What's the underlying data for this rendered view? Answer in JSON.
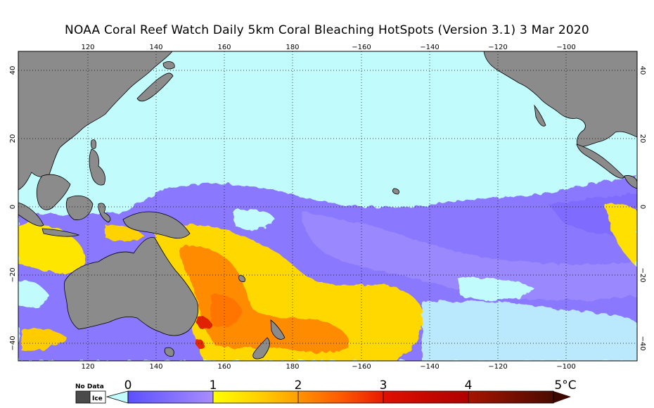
{
  "title": "NOAA Coral Reef Watch Daily 5km Coral Bleaching HotSpots (Version 3.1)  3 Mar 2020",
  "axes": {
    "lon_labels": [
      "120",
      "140",
      "160",
      "180",
      "−160",
      "−140",
      "−120",
      "−100"
    ],
    "lat_labels_left": [
      "40",
      "20",
      "0",
      "−20",
      "−40"
    ],
    "lat_labels_right": [
      "40",
      "20",
      "0",
      "−20",
      "−40"
    ]
  },
  "legend": {
    "nodata_label": "No Data",
    "ice_label": "Ice",
    "ticks": [
      "0",
      "1",
      "2",
      "3",
      "4",
      "5°C"
    ],
    "colors": {
      "ocean_no_stress": "#c2fbfb",
      "land": "#8b8b8b",
      "level1": "#8080ff",
      "level2": "#ffff00",
      "level3": "#ff9900",
      "level4": "#dd1100",
      "level5": "#551100"
    }
  }
}
